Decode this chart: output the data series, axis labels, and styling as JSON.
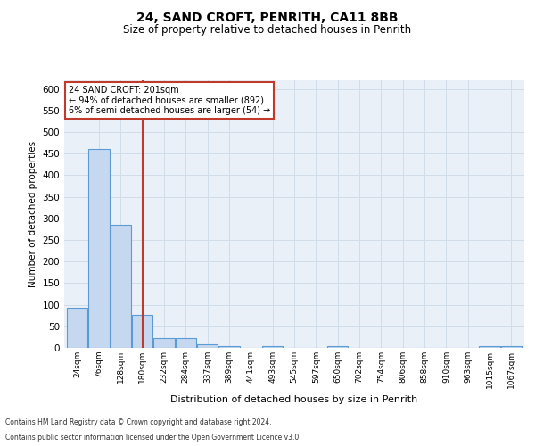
{
  "title1": "24, SAND CROFT, PENRITH, CA11 8BB",
  "title2": "Size of property relative to detached houses in Penrith",
  "xlabel": "Distribution of detached houses by size in Penrith",
  "ylabel": "Number of detached properties",
  "bar_labels": [
    "24sqm",
    "76sqm",
    "128sqm",
    "180sqm",
    "232sqm",
    "284sqm",
    "337sqm",
    "389sqm",
    "441sqm",
    "493sqm",
    "545sqm",
    "597sqm",
    "650sqm",
    "702sqm",
    "754sqm",
    "806sqm",
    "858sqm",
    "910sqm",
    "963sqm",
    "1015sqm",
    "1067sqm"
  ],
  "bar_values": [
    93,
    460,
    286,
    76,
    22,
    22,
    8,
    5,
    0,
    5,
    0,
    0,
    5,
    0,
    0,
    0,
    0,
    0,
    0,
    5,
    5
  ],
  "bar_color": "#c5d8f0",
  "bar_edge_color": "#5b9bd5",
  "vline_x": 3.0,
  "vline_color": "#c0392b",
  "ylim": [
    0,
    620
  ],
  "yticks": [
    0,
    50,
    100,
    150,
    200,
    250,
    300,
    350,
    400,
    450,
    500,
    550,
    600
  ],
  "annotation_text": "24 SAND CROFT: 201sqm\n← 94% of detached houses are smaller (892)\n6% of semi-detached houses are larger (54) →",
  "annotation_box_color": "#ffffff",
  "annotation_box_edge_color": "#c0392b",
  "grid_color": "#d0dce8",
  "bg_color": "#eaf0f8",
  "footer1": "Contains HM Land Registry data © Crown copyright and database right 2024.",
  "footer2": "Contains public sector information licensed under the Open Government Licence v3.0."
}
